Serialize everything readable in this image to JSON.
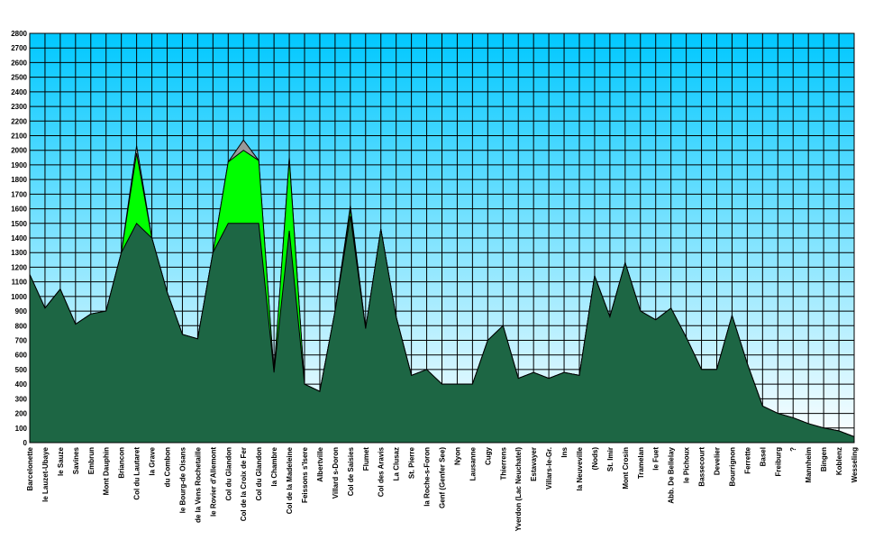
{
  "chart_data": {
    "type": "area",
    "categories": [
      "Barcelonette",
      "le Lauzet-Ubaye",
      "le Sauze",
      "Savines",
      "Embrun",
      "Mont Dauphin",
      "Briancon",
      "Col du Lautaret",
      "la Grave",
      "du Combon",
      "le Bourg-de Oisans",
      "de la Vens Rochetaille",
      "le Rovier d'Allemont",
      "Col du Glandon",
      "Col de la Croix de Fer",
      "Col du Glandon",
      "la Chambre",
      "Col de la Madeleine",
      "Feissons s'Isere",
      "Albertville",
      "Villard s-Doron",
      "Col de Saisies",
      "Flumet",
      "Col des Aravis",
      "La Clusaz",
      "St. Pierre",
      "la Roche-s-Foron",
      "Genf (Genfer See)",
      "Nyon",
      "Lausanne",
      "Cugy",
      "Thierrens",
      "Yverdon (Lac Neuchatel)",
      "Estavayer",
      "Villars-le-Gr.",
      "Ins",
      "la Neuveville",
      "(Nods)",
      "St. Imir",
      "Mont Crosin",
      "Tramelan",
      "le Fuet",
      "Abb. De Bellelay",
      "le Pichoux",
      "Bassecourt",
      "Develier",
      "Bourrignon",
      "Ferrette",
      "Basel",
      "Freiburg",
      "?",
      "Mannheim",
      "Bingen",
      "Koblenz",
      "Wesseling"
    ],
    "series": [
      {
        "color": "#999999",
        "values": [
          1150,
          920,
          1050,
          810,
          880,
          900,
          1300,
          2030,
          1400,
          1030,
          740,
          710,
          1300,
          1920,
          2070,
          1930,
          460,
          1950,
          400,
          350,
          900,
          1620,
          780,
          1460,
          860,
          460,
          500,
          400,
          400,
          400,
          700,
          800,
          440,
          480,
          440,
          480,
          460,
          1140,
          860,
          1230,
          900,
          840,
          920,
          720,
          500,
          500,
          870,
          540,
          250,
          200,
          170,
          130,
          100,
          80,
          40
        ]
      },
      {
        "color": "#00ff00",
        "values": [
          1150,
          920,
          1050,
          810,
          880,
          900,
          1300,
          1980,
          1400,
          1030,
          740,
          710,
          1300,
          1920,
          2000,
          1930,
          480,
          1940,
          400,
          350,
          900,
          1600,
          780,
          1460,
          860,
          460,
          500,
          400,
          400,
          400,
          700,
          800,
          440,
          480,
          440,
          480,
          460,
          1140,
          860,
          1230,
          900,
          840,
          920,
          720,
          500,
          500,
          870,
          540,
          250,
          200,
          170,
          130,
          100,
          80,
          40
        ]
      },
      {
        "color": "#1d6644",
        "values": [
          1150,
          920,
          1050,
          810,
          880,
          900,
          1300,
          1500,
          1400,
          1030,
          740,
          710,
          1300,
          1500,
          1500,
          1500,
          480,
          1450,
          400,
          350,
          900,
          1550,
          780,
          1460,
          860,
          460,
          500,
          400,
          400,
          400,
          700,
          800,
          440,
          480,
          440,
          480,
          460,
          1140,
          860,
          1230,
          900,
          840,
          920,
          720,
          500,
          500,
          870,
          540,
          250,
          200,
          170,
          130,
          100,
          80,
          40
        ]
      }
    ],
    "ylim": [
      0,
      2800
    ],
    "yticks": [
      0,
      100,
      200,
      300,
      400,
      500,
      600,
      700,
      800,
      900,
      1000,
      1100,
      1200,
      1300,
      1400,
      1500,
      1600,
      1700,
      1800,
      1900,
      2000,
      2100,
      2200,
      2300,
      2400,
      2500,
      2600,
      2700,
      2800
    ],
    "grid": true
  }
}
